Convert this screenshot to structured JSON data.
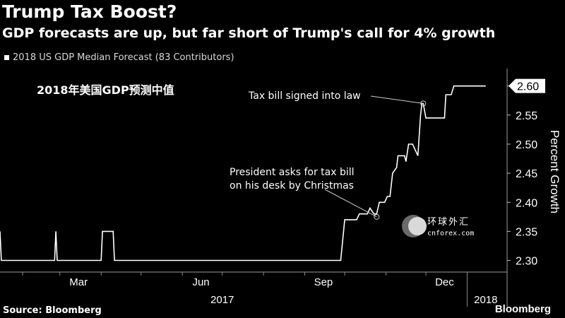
{
  "header": {
    "title": "Trump Tax Boost?",
    "subtitle": "GDP forecasts are up, but far short of Trump's call for 4% growth"
  },
  "legend": {
    "label": "2018 US GDP Median Forecast (83 Contributors)"
  },
  "footer": {
    "source": "Source: Bloomberg",
    "brand": "Bloomberg"
  },
  "watermark": {
    "name_cn": "环球外汇",
    "site": "cnforex.com"
  },
  "colors": {
    "background": "#000000",
    "line": "#ffffff",
    "grid": "#3a3a3a",
    "text": "#ffffff"
  },
  "chart_data": {
    "type": "line",
    "title": "Trump Tax Boost?",
    "subtitle": "GDP forecasts are up, but far short of Trump's call for 4% growth",
    "ylabel": "Percent Growth",
    "ylim": [
      2.28,
      2.63
    ],
    "yticks": [
      "2.30",
      "2.35",
      "2.40",
      "2.45",
      "2.50",
      "2.55",
      "2.60"
    ],
    "xlim": [
      "2017-01-15",
      "2018-01-31"
    ],
    "x_month_labels": [
      {
        "label": "Mar",
        "date": "2017-03-15"
      },
      {
        "label": "Jun",
        "date": "2017-06-15"
      },
      {
        "label": "Sep",
        "date": "2017-09-15"
      },
      {
        "label": "Dec",
        "date": "2017-12-15"
      }
    ],
    "x_year_labels": [
      {
        "label": "2017",
        "date": "2017-07-01"
      },
      {
        "label": "2018",
        "date": "2018-01-15"
      }
    ],
    "month_boundaries": [
      "2017-02-01",
      "2017-03-01",
      "2017-04-01",
      "2017-05-01",
      "2017-06-01",
      "2017-07-01",
      "2017-08-01",
      "2017-09-01",
      "2017-10-01",
      "2017-11-01",
      "2017-12-01",
      "2018-01-01"
    ],
    "last_value_label": "2.60",
    "series": [
      {
        "name": "2018 US GDP Median Forecast (83 Contributors)",
        "points": [
          [
            "2017-01-15",
            2.35
          ],
          [
            "2017-01-16",
            2.3
          ],
          [
            "2017-02-25",
            2.3
          ],
          [
            "2017-02-26",
            2.35
          ],
          [
            "2017-02-27",
            2.3
          ],
          [
            "2017-04-01",
            2.3
          ],
          [
            "2017-04-02",
            2.35
          ],
          [
            "2017-04-10",
            2.35
          ],
          [
            "2017-04-11",
            2.3
          ],
          [
            "2017-09-28",
            2.3
          ],
          [
            "2017-10-01",
            2.37
          ],
          [
            "2017-10-10",
            2.37
          ],
          [
            "2017-10-12",
            2.38
          ],
          [
            "2017-10-18",
            2.38
          ],
          [
            "2017-10-20",
            2.39
          ],
          [
            "2017-10-23",
            2.38
          ],
          [
            "2017-10-25",
            2.38
          ],
          [
            "2017-10-27",
            2.4
          ],
          [
            "2017-10-31",
            2.4
          ],
          [
            "2017-11-02",
            2.41
          ],
          [
            "2017-11-04",
            2.41
          ],
          [
            "2017-11-06",
            2.45
          ],
          [
            "2017-11-09",
            2.46
          ],
          [
            "2017-11-10",
            2.48
          ],
          [
            "2017-11-15",
            2.48
          ],
          [
            "2017-11-16",
            2.47
          ],
          [
            "2017-11-18",
            2.5
          ],
          [
            "2017-11-21",
            2.5
          ],
          [
            "2017-11-25",
            2.48
          ],
          [
            "2017-11-27",
            2.55
          ],
          [
            "2017-11-28",
            2.57
          ],
          [
            "2017-11-29",
            2.57
          ],
          [
            "2017-12-01",
            2.545
          ],
          [
            "2017-12-15",
            2.545
          ],
          [
            "2017-12-16",
            2.585
          ],
          [
            "2017-12-20",
            2.585
          ],
          [
            "2017-12-22",
            2.6
          ],
          [
            "2018-01-15",
            2.6
          ]
        ]
      }
    ],
    "annotations": [
      {
        "text": "Tax bill signed into law",
        "date": "2017-11-29",
        "value": 2.57
      },
      {
        "text_lines": [
          "President asks for tax bill",
          "on his desk by Christmas"
        ],
        "date": "2017-10-25",
        "value": 2.375
      }
    ],
    "overlay_text": "2018年美国GDP预测中值",
    "grid": false
  }
}
